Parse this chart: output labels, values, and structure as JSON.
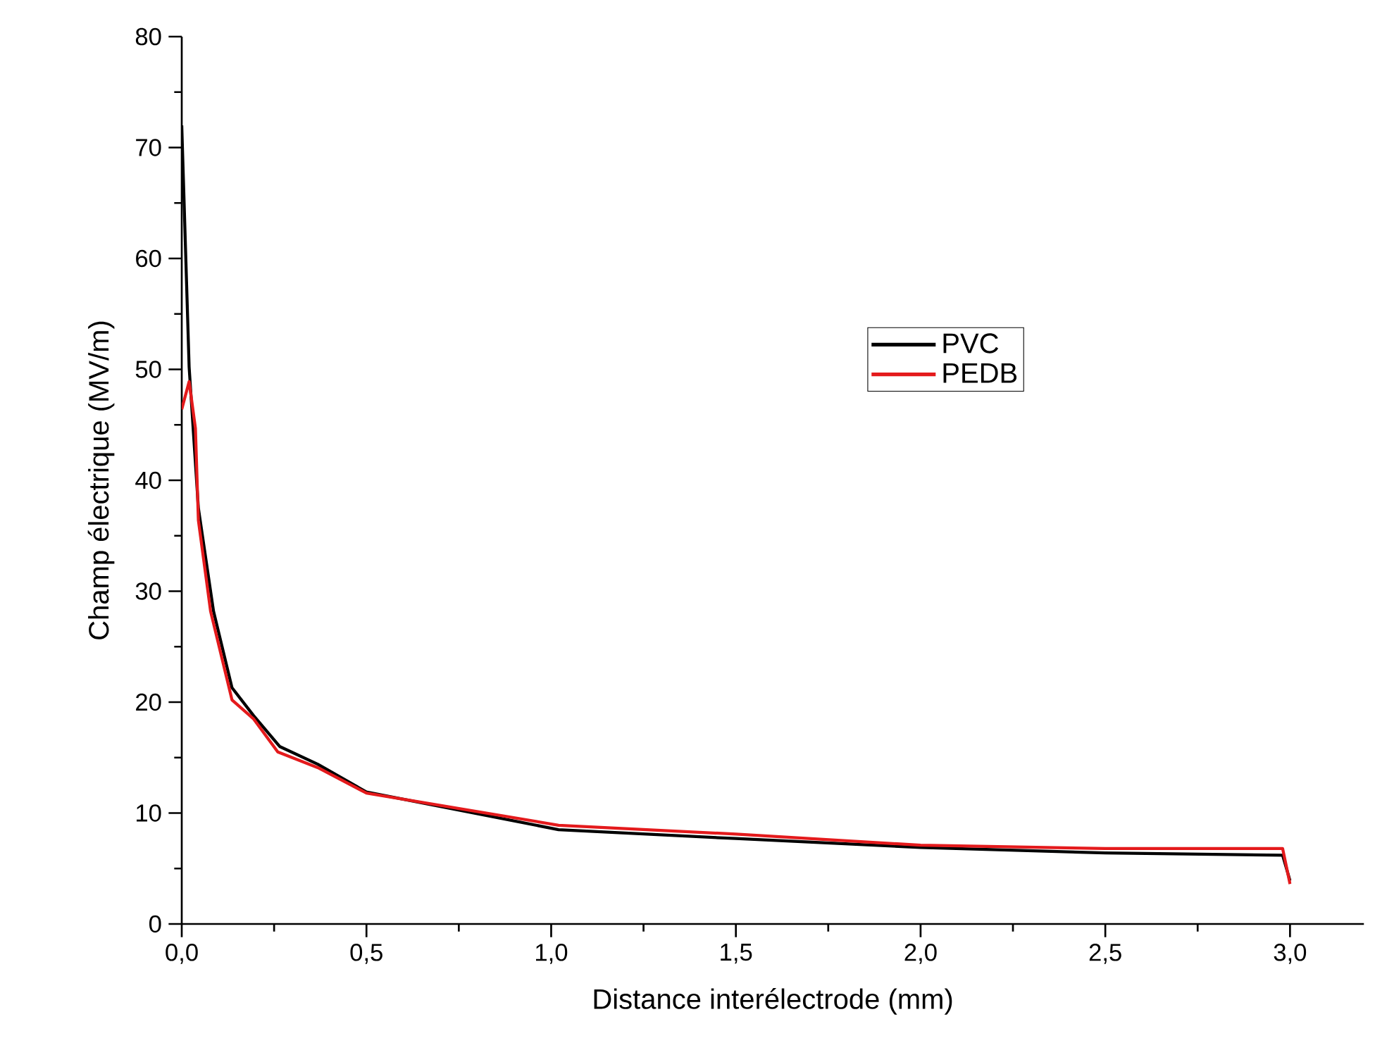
{
  "chart_data": {
    "type": "line",
    "xlabel": "Distance interélectrode (mm)",
    "ylabel": "Champ électrique (MV/m)",
    "xlim": [
      0,
      3.2
    ],
    "ylim": [
      0,
      80
    ],
    "xticks": [
      {
        "value": 0,
        "label": "0,0"
      },
      {
        "value": 0.5,
        "label": "0,5"
      },
      {
        "value": 1,
        "label": "1,0"
      },
      {
        "value": 1.5,
        "label": "1,5"
      },
      {
        "value": 2,
        "label": "2,0"
      },
      {
        "value": 2.5,
        "label": "2,5"
      },
      {
        "value": 3,
        "label": "3,0"
      }
    ],
    "yticks": [
      0,
      10,
      20,
      30,
      40,
      50,
      60,
      70,
      80
    ],
    "legend": "right",
    "series": [
      {
        "name": "PVC",
        "color": "#000000",
        "x": [
          0,
          0.02,
          0.045,
          0.086,
          0.136,
          0.194,
          0.265,
          0.368,
          0.5,
          1.02,
          1.5,
          2.0,
          2.5,
          2.98,
          3.0
        ],
        "values": [
          72,
          50.2,
          37.5,
          28.2,
          21.3,
          18.8,
          16.0,
          14.4,
          11.9,
          8.5,
          7.7,
          6.9,
          6.4,
          6.2,
          3.9
        ]
      },
      {
        "name": "PEDB",
        "color": "#e41a1c",
        "x": [
          0,
          0.02,
          0.037,
          0.045,
          0.078,
          0.136,
          0.194,
          0.26,
          0.368,
          0.5,
          1.02,
          1.5,
          2.0,
          2.5,
          2.98,
          3.0
        ],
        "values": [
          46.4,
          48.9,
          44.7,
          36.4,
          28.2,
          20.2,
          18.5,
          15.5,
          14.1,
          11.8,
          8.9,
          8.1,
          7.1,
          6.8,
          6.8,
          3.6
        ]
      }
    ]
  }
}
